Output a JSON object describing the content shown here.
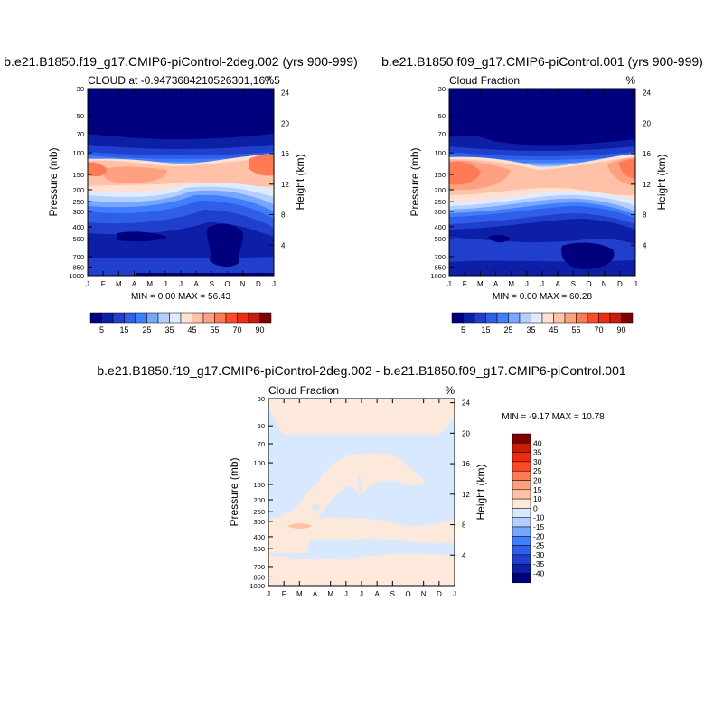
{
  "colors": {
    "c5": "#00007f",
    "c10": "#0d1fa6",
    "c15": "#1f3fcc",
    "c20": "#2f5fe8",
    "c25": "#3f7fff",
    "c30": "#78a6ff",
    "c35": "#b4cfff",
    "c40": "#dfecff",
    "c45": "#ffe0d2",
    "c50": "#ffc2a8",
    "c55": "#ffa080",
    "c60": "#ff7a55",
    "c65": "#ff4a25",
    "c70": "#ee2a10",
    "c80": "#c81e08",
    "c90": "#7f0000",
    "diff_neg0": "#d7e8ff",
    "diff_pos0": "#fde9dc"
  },
  "chart_data": [
    {
      "type": "heatmap",
      "id": "p1",
      "title": "b.e21.B1850.f19_g17.CMIP6-piControl-2deg.002 (yrs 900-999)",
      "left_string": "CLOUD at -0.9473684210526301,167.5",
      "right_string": "%",
      "ylabel": "Pressure (mb)",
      "ylabel_right": "Height (km)",
      "x_ticks": [
        "J",
        "F",
        "M",
        "A",
        "M",
        "J",
        "J",
        "A",
        "S",
        "O",
        "N",
        "D",
        "J"
      ],
      "y_ticks": [
        "30",
        "50",
        "70",
        "100",
        "150",
        "200",
        "250",
        "300",
        "400",
        "500",
        "700",
        "850",
        "1000"
      ],
      "y_right_ticks": [
        "24",
        "20",
        "16",
        "12",
        "8",
        "4"
      ],
      "min_label": "MIN =",
      "min": "0.00",
      "max_label": "MAX =",
      "max": "56.43",
      "colorbar_labels": [
        "5",
        "15",
        "25",
        "35",
        "45",
        "55",
        "70",
        "90"
      ]
    },
    {
      "type": "heatmap",
      "id": "p2",
      "title": "b.e21.B1850.f09_g17.CMIP6-piControl.001 (yrs 900-999)",
      "left_string": "Cloud Fraction",
      "right_string": "%",
      "ylabel": "Pressure (mb)",
      "ylabel_right": "Height (km)",
      "x_ticks": [
        "J",
        "F",
        "M",
        "A",
        "M",
        "J",
        "J",
        "A",
        "S",
        "O",
        "N",
        "D",
        "J"
      ],
      "y_ticks": [
        "30",
        "50",
        "70",
        "100",
        "150",
        "200",
        "250",
        "300",
        "400",
        "500",
        "700",
        "850",
        "1000"
      ],
      "y_right_ticks": [
        "24",
        "20",
        "16",
        "12",
        "8",
        "4"
      ],
      "min_label": "MIN =",
      "min": "0.00",
      "max_label": "MAX =",
      "max": "60.28",
      "colorbar_labels": [
        "5",
        "15",
        "25",
        "35",
        "45",
        "55",
        "70",
        "90"
      ]
    },
    {
      "type": "heatmap",
      "id": "p3",
      "title": "b.e21.B1850.f19_g17.CMIP6-piControl-2deg.002 - b.e21.B1850.f09_g17.CMIP6-piControl.001",
      "left_string": "Cloud Fraction",
      "right_string": "%",
      "ylabel": "Pressure (mb)",
      "ylabel_right": "Height (km)",
      "x_ticks": [
        "J",
        "F",
        "M",
        "A",
        "M",
        "J",
        "J",
        "A",
        "S",
        "O",
        "N",
        "D",
        "J"
      ],
      "y_ticks": [
        "30",
        "50",
        "70",
        "100",
        "150",
        "200",
        "250",
        "300",
        "400",
        "500",
        "700",
        "850",
        "1000"
      ],
      "y_right_ticks": [
        "24",
        "20",
        "16",
        "12",
        "8",
        "4"
      ],
      "min_label": "MIN =",
      "min": "-9.17",
      "max_label": "MAX =",
      "max": "10.78",
      "colorbar_labels": [
        "40",
        "35",
        "30",
        "25",
        "20",
        "15",
        "10",
        "0",
        "-10",
        "-15",
        "-20",
        "-25",
        "-30",
        "-35",
        "-40"
      ]
    }
  ]
}
